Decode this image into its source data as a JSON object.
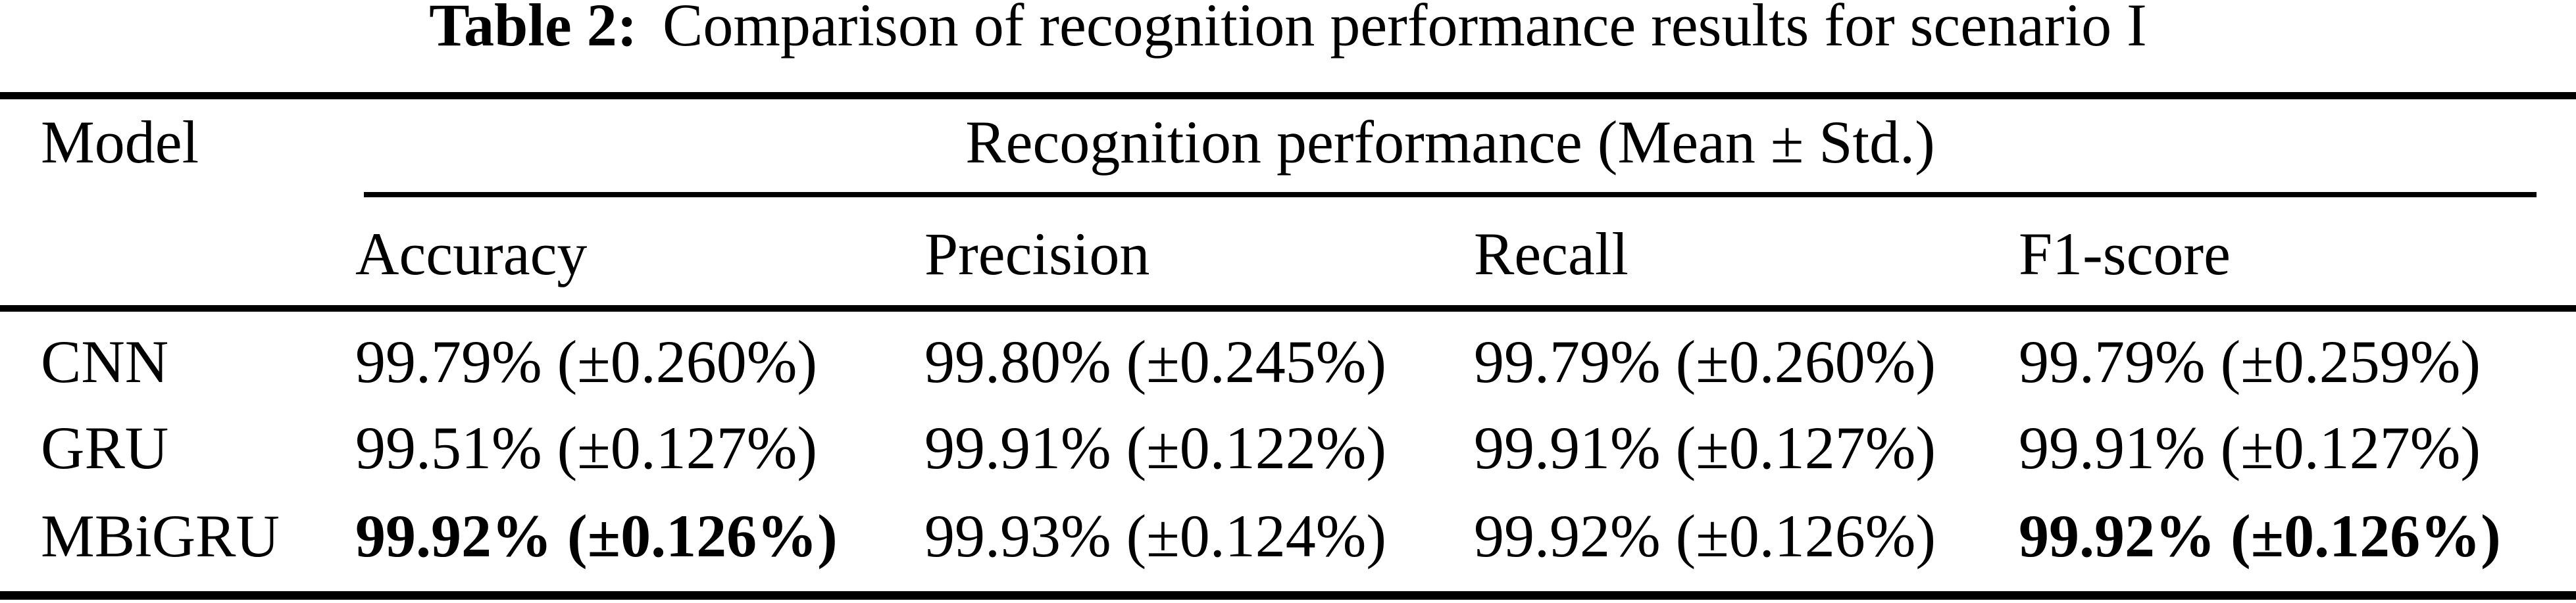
{
  "caption": {
    "label": "Table 2:",
    "text": "Comparison of recognition performance results for scenario I"
  },
  "table": {
    "model_header": "Model",
    "group_header": "Recognition performance (Mean ± Std.)",
    "columns": [
      "Accuracy",
      "Precision",
      "Recall",
      "F1-score"
    ],
    "rows": [
      {
        "model": "CNN",
        "cells": [
          {
            "text": "99.79% (±0.260%)",
            "weight": "normal"
          },
          {
            "text": "99.80% (±0.245%)",
            "weight": "normal"
          },
          {
            "text": "99.79% (±0.260%)",
            "weight": "normal"
          },
          {
            "text": "99.79% (±0.259%)",
            "weight": "normal"
          }
        ]
      },
      {
        "model": "GRU",
        "cells": [
          {
            "text": "99.51% (±0.127%)",
            "weight": "normal"
          },
          {
            "text": "99.91% (±0.122%)",
            "weight": "normal"
          },
          {
            "text": "99.91% (±0.127%)",
            "weight": "normal"
          },
          {
            "text": "99.91% (±0.127%)",
            "weight": "normal"
          }
        ]
      },
      {
        "model": "MBiGRU",
        "cells": [
          {
            "text": "99.92% (±0.126%)",
            "weight": "bold"
          },
          {
            "text": "99.93% (±0.124%)",
            "weight": "normal"
          },
          {
            "text": "99.92% (±0.126%)",
            "weight": "normal"
          },
          {
            "text": "99.92% (±0.126%)",
            "weight": "bold"
          }
        ]
      }
    ]
  },
  "colors": {
    "text": "#000000",
    "background": "#ffffff",
    "rule": "#000000"
  }
}
